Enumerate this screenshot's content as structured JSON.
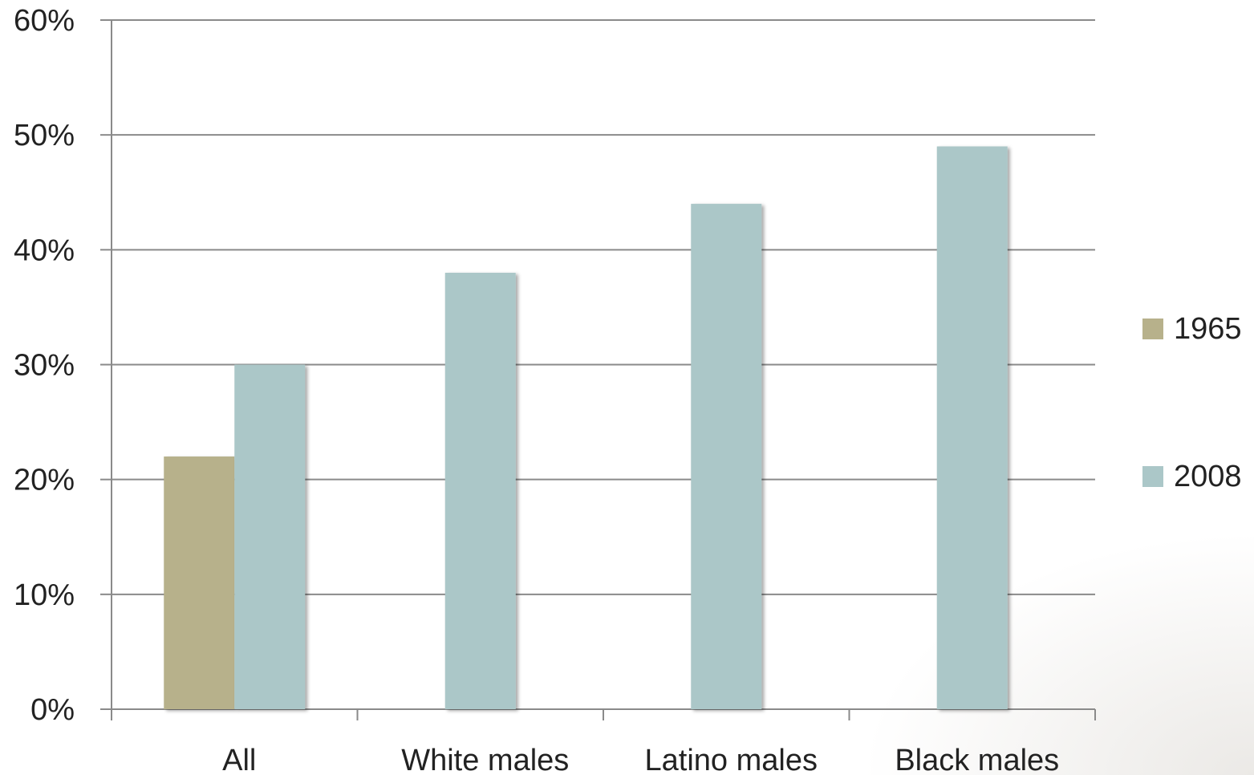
{
  "chart_data": {
    "type": "bar",
    "categories": [
      "All",
      "White males",
      "Latino males",
      "Black males"
    ],
    "series": [
      {
        "name": "1965",
        "values": [
          22,
          null,
          null,
          null
        ],
        "color": "#b7b18b"
      },
      {
        "name": "2008",
        "values": [
          30,
          38,
          44,
          49
        ],
        "color": "#abc7c8"
      }
    ],
    "y_ticks": [
      "0%",
      "10%",
      "20%",
      "30%",
      "40%",
      "50%",
      "60%"
    ],
    "ylim": [
      0,
      60
    ],
    "y_unit": "%",
    "grid": true,
    "legend_position": "right",
    "title": "",
    "xlabel": "",
    "ylabel": ""
  }
}
